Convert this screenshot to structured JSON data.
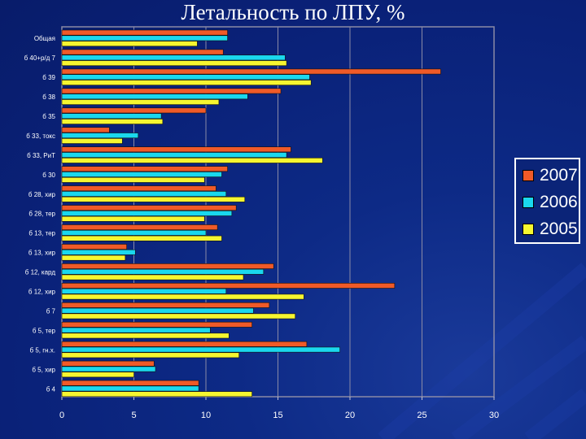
{
  "title": "Летальность по ЛПУ, %",
  "chart_data": {
    "type": "bar",
    "orientation": "horizontal",
    "categories": [
      "Общая",
      "б 40+р/д 7",
      "б 39",
      "б 38",
      "б 35",
      "б 33, токс",
      "б 33, РиТ",
      "б 30",
      "б 28, хир",
      "б 28, тер",
      "б 13, тер",
      "б 13, хир",
      "б 12, кард",
      "б 12, хир",
      "б 7",
      "б 5, тер",
      "б 5, гн.х.",
      "б 5, хир",
      "б 4"
    ],
    "series": [
      {
        "name": "2007",
        "color": "#f05a28",
        "values": [
          11.5,
          11.2,
          26.3,
          15.2,
          10.0,
          3.3,
          15.9,
          11.5,
          10.7,
          12.1,
          10.8,
          4.5,
          14.7,
          23.1,
          14.4,
          13.2,
          17.0,
          6.4,
          9.5
        ]
      },
      {
        "name": "2006",
        "color": "#1ad8ee",
        "values": [
          11.5,
          15.5,
          17.2,
          12.9,
          6.9,
          5.3,
          15.6,
          11.1,
          11.4,
          11.8,
          10.0,
          5.1,
          14.0,
          11.4,
          13.3,
          10.3,
          19.3,
          6.5,
          9.5
        ]
      },
      {
        "name": "2005",
        "color": "#f6f630",
        "values": [
          9.4,
          15.6,
          17.3,
          10.9,
          7.0,
          4.2,
          18.1,
          9.9,
          12.7,
          9.9,
          11.1,
          4.4,
          12.6,
          16.8,
          16.2,
          11.6,
          12.3,
          5.0,
          13.2
        ]
      }
    ],
    "xlim": [
      0,
      30
    ],
    "xticks": [
      "0",
      "5",
      "10",
      "15",
      "20",
      "25",
      "30"
    ],
    "grid": true,
    "legend_position": "right"
  }
}
